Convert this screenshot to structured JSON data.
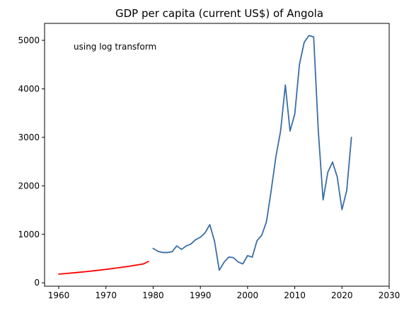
{
  "chart_data": {
    "type": "line",
    "title": "GDP per capita (current US$) of Angola",
    "xlabel": "",
    "ylabel": "",
    "annotation": "using log transform",
    "xlim": [
      1957,
      2030
    ],
    "ylim": [
      -70,
      5350
    ],
    "x_ticks": [
      1960,
      1970,
      1980,
      1990,
      2000,
      2010,
      2020,
      2030
    ],
    "y_ticks": [
      0,
      1000,
      2000,
      3000,
      4000,
      5000
    ],
    "grid": false,
    "legend": "none",
    "series": [
      {
        "color": "#ff0000",
        "x": [
          1960,
          1961,
          1962,
          1963,
          1964,
          1965,
          1966,
          1967,
          1968,
          1969,
          1970,
          1971,
          1972,
          1973,
          1974,
          1975,
          1976,
          1977,
          1978,
          1979
        ],
        "values": [
          180,
          188,
          196,
          205,
          214,
          223,
          233,
          243,
          254,
          265,
          277,
          289,
          302,
          315,
          329,
          343,
          358,
          374,
          391,
          440
        ]
      },
      {
        "color": "#3a6ea5",
        "x": [
          1980,
          1981,
          1982,
          1983,
          1984,
          1985,
          1986,
          1987,
          1988,
          1989,
          1990,
          1991,
          1992,
          1993,
          1994,
          1995,
          1996,
          1997,
          1998,
          1999,
          2000,
          2001,
          2002,
          2003,
          2004,
          2005,
          2006,
          2007,
          2008,
          2009,
          2010,
          2011,
          2012,
          2013,
          2014,
          2015,
          2016,
          2017,
          2018,
          2019,
          2020,
          2021,
          2022
        ],
        "values": [
          710,
          650,
          625,
          625,
          640,
          760,
          690,
          760,
          800,
          890,
          940,
          1030,
          1200,
          860,
          260,
          420,
          530,
          520,
          430,
          390,
          560,
          530,
          870,
          980,
          1260,
          1900,
          2600,
          3130,
          4080,
          3130,
          3480,
          4510,
          4960,
          5100,
          5070,
          3110,
          1710,
          2280,
          2490,
          2180,
          1510,
          1900,
          3000
        ]
      }
    ]
  }
}
